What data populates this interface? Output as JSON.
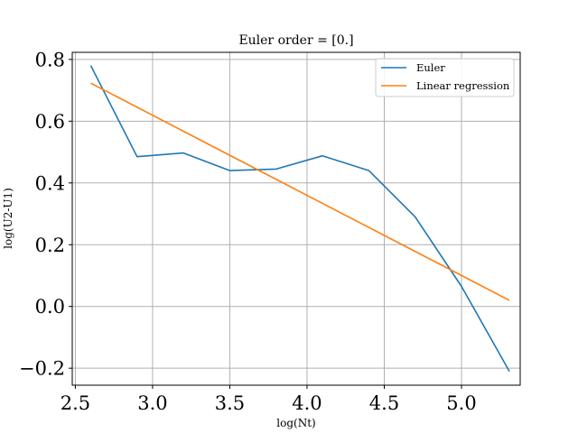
{
  "chart_data": {
    "type": "line",
    "title": "Euler order = [0.]",
    "xlabel": "log(Nt)",
    "ylabel": "log(U2-U1)",
    "xlim": [
      2.48,
      5.38
    ],
    "ylim": [
      -0.255,
      0.823
    ],
    "xticks": [
      2.5,
      3.0,
      3.5,
      4.0,
      4.5,
      5.0
    ],
    "xtick_labels": [
      "2.5",
      "3.0",
      "3.5",
      "4.0",
      "4.5",
      "5.0"
    ],
    "yticks": [
      -0.2,
      0.0,
      0.2,
      0.4,
      0.6,
      0.8
    ],
    "ytick_labels": [
      "−0.2",
      "0.0",
      "0.2",
      "0.4",
      "0.6",
      "0.8"
    ],
    "grid": true,
    "legend_position": "top-right",
    "series": [
      {
        "name": "Euler",
        "color": "#1f77b4",
        "x": [
          2.6,
          2.9,
          3.2,
          3.5,
          3.8,
          4.1,
          4.4,
          4.7,
          5.0,
          5.31
        ],
        "y": [
          0.78,
          0.485,
          0.497,
          0.44,
          0.445,
          0.488,
          0.44,
          0.29,
          0.065,
          -0.21
        ]
      },
      {
        "name": "Linear regression",
        "color": "#ff7f0e",
        "x": [
          2.6,
          5.31
        ],
        "y": [
          0.723,
          0.02
        ]
      }
    ]
  }
}
